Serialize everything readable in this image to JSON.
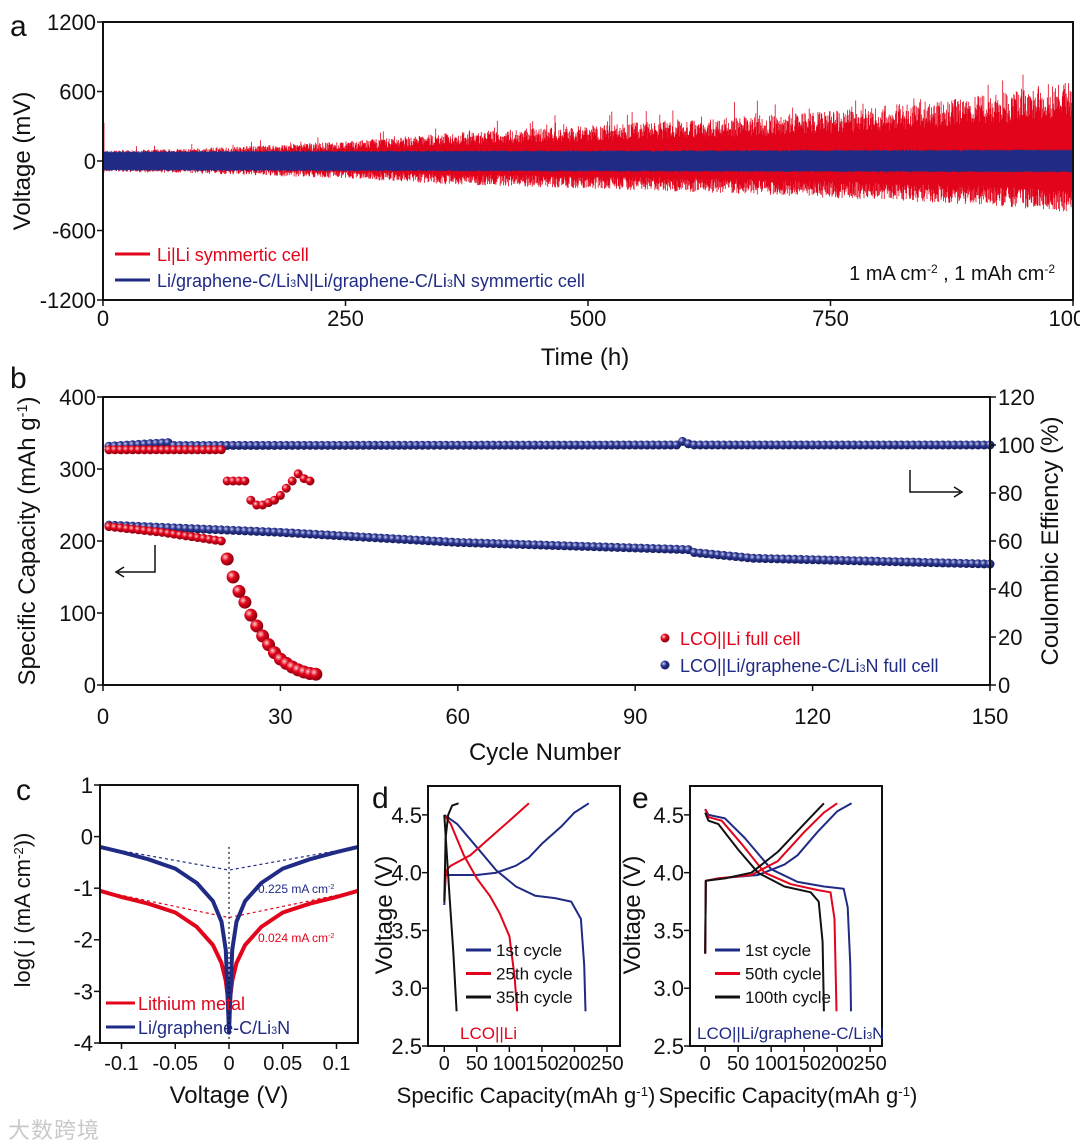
{
  "colors": {
    "red": "#e2041b",
    "blue": "#1f2b85",
    "black": "#111111"
  },
  "watermark": "大数跨境",
  "chart_data": [
    {
      "panel": "a",
      "type": "line",
      "xlabel": "Time (h)",
      "ylabel": "Voltage (mV)",
      "xlim": [
        0,
        1000
      ],
      "ylim": [
        -1200,
        1200
      ],
      "xticks": [
        0,
        250,
        500,
        750,
        1000
      ],
      "yticks": [
        1200,
        600,
        0,
        -600,
        -1200
      ],
      "annotation": "1 mA cm^{-2} , 1 mAh cm^{-2}",
      "series": [
        {
          "name": "Li|Li symmertic cell",
          "color": "red",
          "envelope_time": [
            0,
            100,
            250,
            350,
            500,
            650,
            750,
            900,
            1000
          ],
          "upper": [
            90,
            110,
            170,
            240,
            310,
            380,
            430,
            560,
            700
          ],
          "lower": [
            -90,
            -110,
            -150,
            -200,
            -240,
            -280,
            -320,
            -380,
            -450
          ],
          "initial_spike": 330
        },
        {
          "name": "Li/graphene-C/Li_{3}N|Li/graphene-C/Li_{3}N  symmertic cell",
          "color": "blue",
          "envelope_time": [
            0,
            1000
          ],
          "upper": [
            85,
            100
          ],
          "lower": [
            -85,
            -100
          ]
        }
      ]
    },
    {
      "panel": "b",
      "type": "scatter",
      "xlabel": "Cycle Number",
      "ylabel": "Specific Capacity (mAh g^{-1})",
      "ylabel_right": "Coulombic Effiency (%)",
      "xlim": [
        0,
        150
      ],
      "ylim": [
        0,
        400
      ],
      "ylim_right": [
        0,
        120
      ],
      "xticks": [
        0,
        30,
        60,
        90,
        120,
        150
      ],
      "yticks": [
        400,
        300,
        200,
        100,
        0
      ],
      "yticks_right": [
        120,
        100,
        80,
        60,
        40,
        20,
        0
      ],
      "series": [
        {
          "name": "LCO||Li full cell",
          "color": "red",
          "capacity": [
            [
              1,
              220
            ],
            [
              10,
              212
            ],
            [
              20,
              200
            ],
            [
              21,
              175
            ],
            [
              22,
              150
            ],
            [
              23,
              130
            ],
            [
              24,
              115
            ],
            [
              25,
              97
            ],
            [
              26,
              82
            ],
            [
              27,
              68
            ],
            [
              28,
              56
            ],
            [
              29,
              45
            ],
            [
              30,
              36
            ],
            [
              31,
              30
            ],
            [
              32,
              25
            ],
            [
              33,
              21
            ],
            [
              34,
              18
            ],
            [
              35,
              16
            ],
            [
              36,
              15
            ]
          ],
          "coulombic_efficiency": [
            [
              1,
              98
            ],
            [
              20,
              98
            ],
            [
              21,
              85
            ],
            [
              22,
              85
            ],
            [
              23,
              85
            ],
            [
              24,
              85
            ],
            [
              25,
              77
            ],
            [
              26,
              75
            ],
            [
              27,
              75
            ],
            [
              28,
              76
            ],
            [
              29,
              77
            ],
            [
              30,
              79
            ],
            [
              31,
              82
            ],
            [
              32,
              85
            ],
            [
              33,
              88
            ],
            [
              34,
              86
            ],
            [
              35,
              85
            ]
          ]
        },
        {
          "name": "LCO||Li/graphene-C/Li_{3}N full cell",
          "color": "blue",
          "capacity": [
            [
              1,
              222
            ],
            [
              30,
              212
            ],
            [
              60,
              198
            ],
            [
              99,
              188
            ],
            [
              100,
              184
            ],
            [
              110,
              176
            ],
            [
              150,
              168
            ]
          ],
          "coulombic_efficiency": [
            [
              1,
              99.5
            ],
            [
              11,
              101
            ],
            [
              12,
              99.8
            ],
            [
              97,
              100
            ],
            [
              98,
              101.5
            ],
            [
              99,
              100.5
            ],
            [
              100,
              100
            ],
            [
              150,
              100
            ]
          ]
        }
      ]
    },
    {
      "panel": "c",
      "type": "line",
      "xlabel": "Voltage (V)",
      "ylabel": "log( j (mA cm^{-2}))",
      "xlim": [
        -0.12,
        0.12
      ],
      "ylim": [
        -4,
        1
      ],
      "xticks": [
        -0.1,
        -0.05,
        0,
        0.05,
        0.1
      ],
      "xtick_labels": [
        "-0.1",
        "-0.05",
        "0",
        "0.05",
        "0.1"
      ],
      "yticks": [
        1,
        0,
        -1,
        -2,
        -3,
        -4
      ],
      "series": [
        {
          "name": "Lithium metal",
          "color": "red",
          "abs_voltage": [
            0.12,
            0.1,
            0.075,
            0.05,
            0.03,
            0.015,
            0.007,
            0.003,
            0.0
          ],
          "log_j": [
            -1.05,
            -1.17,
            -1.3,
            -1.47,
            -1.75,
            -2.1,
            -2.45,
            -2.8,
            -3.3
          ],
          "exchange_current": "0.024 mA cm^{-2}",
          "tangent_intercept": -1.57
        },
        {
          "name": "Li/graphene-C/Li_{3}N",
          "color": "blue",
          "abs_voltage": [
            0.12,
            0.1,
            0.075,
            0.05,
            0.03,
            0.015,
            0.007,
            0.003,
            0.0
          ],
          "log_j": [
            -0.2,
            -0.3,
            -0.44,
            -0.62,
            -0.9,
            -1.25,
            -1.65,
            -2.2,
            -3.8
          ],
          "exchange_current": "0.225 mA cm^{-2}",
          "tangent_intercept": -0.65
        }
      ]
    },
    {
      "panel": "d",
      "type": "line",
      "xlabel": "Specific Capacity(mAh g^{-1})",
      "ylabel": "Voltage (V)",
      "xlim": [
        -25,
        270
      ],
      "ylim": [
        2.5,
        4.75
      ],
      "xticks": [
        0,
        50,
        100,
        150,
        200,
        250
      ],
      "yticks": [
        4.5,
        4.0,
        3.5,
        3.0,
        2.5
      ],
      "annotation": "LCO||Li",
      "series": [
        {
          "name": "1st cycle",
          "color": "blue",
          "charge": [
            [
              0,
              3.72
            ],
            [
              2,
              3.98
            ],
            [
              10,
              3.98
            ],
            [
              50,
              3.98
            ],
            [
              80,
              4.0
            ],
            [
              110,
              4.06
            ],
            [
              130,
              4.13
            ],
            [
              150,
              4.25
            ],
            [
              180,
              4.4
            ],
            [
              200,
              4.52
            ],
            [
              222,
              4.6
            ]
          ],
          "discharge": [
            [
              0,
              4.5
            ],
            [
              20,
              4.42
            ],
            [
              50,
              4.22
            ],
            [
              80,
              4.02
            ],
            [
              110,
              3.88
            ],
            [
              140,
              3.8
            ],
            [
              170,
              3.78
            ],
            [
              195,
              3.75
            ],
            [
              210,
              3.6
            ],
            [
              215,
              3.2
            ],
            [
              217,
              2.8
            ]
          ]
        },
        {
          "name": "25th cycle",
          "color": "red",
          "charge": [
            [
              0,
              3.8
            ],
            [
              3,
              4.02
            ],
            [
              10,
              4.06
            ],
            [
              40,
              4.15
            ],
            [
              70,
              4.3
            ],
            [
              100,
              4.45
            ],
            [
              130,
              4.6
            ]
          ],
          "discharge": [
            [
              0,
              4.5
            ],
            [
              10,
              4.42
            ],
            [
              30,
              4.15
            ],
            [
              50,
              3.95
            ],
            [
              70,
              3.8
            ],
            [
              85,
              3.65
            ],
            [
              100,
              3.45
            ],
            [
              108,
              3.1
            ],
            [
              112,
              2.8
            ]
          ]
        },
        {
          "name": "35th cycle",
          "color": "black",
          "charge": [
            [
              0,
              3.75
            ],
            [
              2,
              4.3
            ],
            [
              6,
              4.5
            ],
            [
              12,
              4.58
            ],
            [
              22,
              4.6
            ]
          ],
          "discharge": [
            [
              0,
              4.5
            ],
            [
              8,
              3.8
            ],
            [
              14,
              3.3
            ],
            [
              19,
              2.8
            ]
          ]
        }
      ]
    },
    {
      "panel": "e",
      "type": "line",
      "xlabel": "Specific Capacity(mAh g^{-1})",
      "ylabel": "Voltage (V)",
      "xlim": [
        -23,
        268
      ],
      "ylim": [
        2.5,
        4.75
      ],
      "xticks": [
        0,
        50,
        100,
        150,
        200,
        250
      ],
      "yticks": [
        4.5,
        4.0,
        3.5,
        3.0,
        2.5
      ],
      "annotation": "LCO||Li/graphene-C/Li_{3}N",
      "series": [
        {
          "name": "1st cycle",
          "color": "blue",
          "charge": [
            [
              0,
              3.3
            ],
            [
              1,
              3.93
            ],
            [
              20,
              3.95
            ],
            [
              80,
              3.98
            ],
            [
              120,
              4.07
            ],
            [
              140,
              4.15
            ],
            [
              170,
              4.35
            ],
            [
              200,
              4.53
            ],
            [
              222,
              4.6
            ]
          ],
          "discharge": [
            [
              0,
              4.55
            ],
            [
              5,
              4.5
            ],
            [
              30,
              4.47
            ],
            [
              60,
              4.3
            ],
            [
              100,
              4.03
            ],
            [
              140,
              3.92
            ],
            [
              180,
              3.88
            ],
            [
              210,
              3.86
            ],
            [
              216,
              3.7
            ],
            [
              220,
              3.2
            ],
            [
              221,
              2.8
            ]
          ]
        },
        {
          "name": "50th cycle",
          "color": "red",
          "charge": [
            [
              0,
              3.3
            ],
            [
              1,
              3.93
            ],
            [
              20,
              3.95
            ],
            [
              70,
              3.98
            ],
            [
              110,
              4.1
            ],
            [
              150,
              4.35
            ],
            [
              180,
              4.52
            ],
            [
              200,
              4.6
            ]
          ],
          "discharge": [
            [
              0,
              4.55
            ],
            [
              5,
              4.48
            ],
            [
              25,
              4.45
            ],
            [
              55,
              4.25
            ],
            [
              90,
              4.0
            ],
            [
              130,
              3.9
            ],
            [
              170,
              3.85
            ],
            [
              190,
              3.83
            ],
            [
              196,
              3.6
            ],
            [
              199,
              2.8
            ]
          ]
        },
        {
          "name": "100th cycle",
          "color": "black",
          "charge": [
            [
              0,
              3.3
            ],
            [
              1,
              3.93
            ],
            [
              30,
              3.95
            ],
            [
              70,
              4.0
            ],
            [
              110,
              4.18
            ],
            [
              150,
              4.42
            ],
            [
              180,
              4.6
            ]
          ],
          "discharge": [
            [
              0,
              4.52
            ],
            [
              5,
              4.45
            ],
            [
              20,
              4.42
            ],
            [
              50,
              4.2
            ],
            [
              80,
              4.0
            ],
            [
              120,
              3.88
            ],
            [
              160,
              3.83
            ],
            [
              172,
              3.75
            ],
            [
              178,
              3.4
            ],
            [
              180,
              2.8
            ]
          ]
        }
      ]
    }
  ]
}
